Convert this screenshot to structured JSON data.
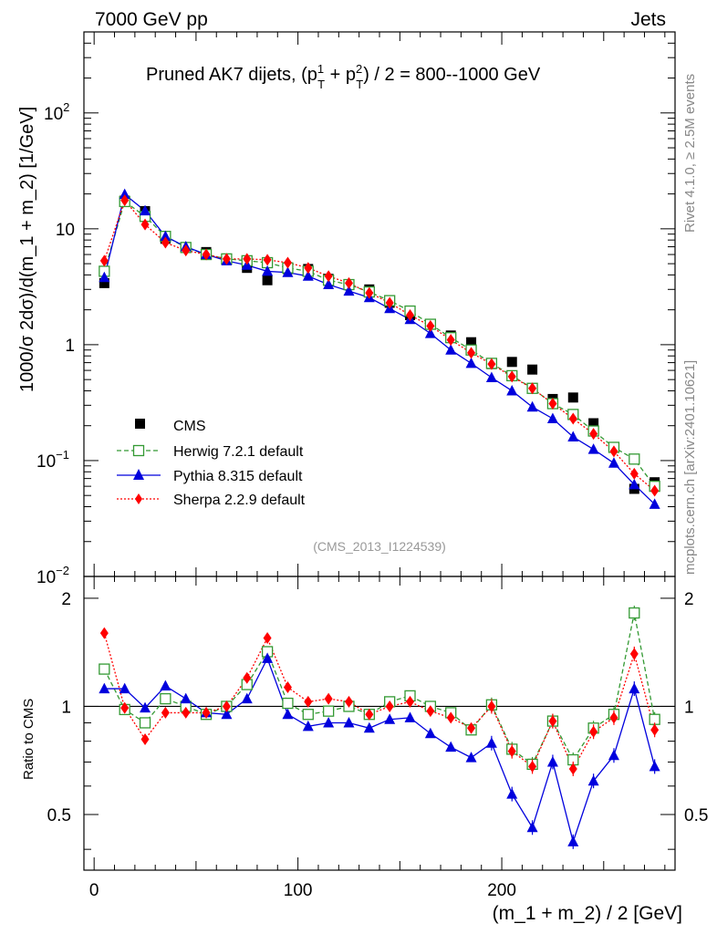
{
  "header": {
    "left": "7000 GeV pp",
    "right": "Jets"
  },
  "side": {
    "rivet": "Rivet 4.1.0, ≥ 2.5M events",
    "mcplots": "mcplots.cern.ch [arXiv:2401.10621]"
  },
  "chart_data": {
    "type": "scatter",
    "title": "Pruned AK7 dijets, (p_T^1 + p_T^2) / 2 = 800--1000 GeV",
    "analysis_id": "(CMS_2013_I1224539)",
    "xlabel": "(m_1 + m_2) / 2 [GeV]",
    "ylabel": "1000/σ  2dσ)/d(m_1 + m_2) [1/GeV]",
    "ratio_ylabel": "Ratio to CMS",
    "xlim": [
      -5,
      285
    ],
    "ylim": [
      0.01,
      500
    ],
    "ratio_ylim": [
      0.35,
      2.3
    ],
    "yscale": "log",
    "x_ticks": [
      "0",
      "100",
      "200"
    ],
    "y_ticks": [
      "10^-2",
      "10^-1",
      "1",
      "10",
      "10^2"
    ],
    "ratio_ticks": [
      "0.5",
      "1",
      "2"
    ],
    "x": [
      5,
      15,
      25,
      35,
      45,
      55,
      65,
      75,
      85,
      95,
      105,
      115,
      125,
      135,
      145,
      155,
      165,
      175,
      185,
      195,
      205,
      215,
      225,
      235,
      245,
      255,
      265,
      275
    ],
    "series": [
      {
        "name": "CMS",
        "style": "square",
        "color": "#000000",
        "values": [
          3.4,
          17.5,
          14.2,
          8.2,
          6.9,
          6.3,
          5.5,
          4.6,
          3.6,
          4.5,
          4.5,
          3.7,
          3.3,
          3.0,
          2.3,
          1.8,
          1.5,
          1.2,
          1.05,
          0.68,
          0.71,
          0.61,
          0.34,
          0.35,
          0.21,
          0.13,
          0.057,
          0.065
        ]
      },
      {
        "name": "Herwig 7.2.1 default",
        "style": "open-square",
        "color": "#339933",
        "values": [
          4.3,
          17.2,
          12.8,
          8.6,
          6.9,
          6.0,
          5.5,
          5.3,
          5.1,
          4.6,
          4.3,
          3.6,
          3.3,
          2.85,
          2.4,
          1.95,
          1.5,
          1.15,
          0.9,
          0.69,
          0.54,
          0.42,
          0.31,
          0.25,
          0.18,
          0.13,
          0.103,
          0.06
        ]
      },
      {
        "name": "Pythia 8.315 default",
        "style": "triangle",
        "color": "#0000dd",
        "values": [
          3.8,
          19.8,
          14.3,
          8.6,
          7.0,
          6.0,
          5.3,
          4.85,
          4.3,
          4.2,
          3.9,
          3.3,
          2.9,
          2.55,
          2.05,
          1.65,
          1.25,
          0.9,
          0.69,
          0.52,
          0.4,
          0.29,
          0.23,
          0.16,
          0.125,
          0.095,
          0.062,
          0.042
        ]
      },
      {
        "name": "Sherpa 2.2.9 default",
        "style": "diamond",
        "color": "#ff0000",
        "values": [
          5.3,
          17.6,
          10.9,
          7.6,
          6.5,
          6.0,
          5.5,
          5.5,
          5.4,
          5.1,
          4.6,
          3.9,
          3.4,
          2.8,
          2.3,
          1.8,
          1.45,
          1.1,
          0.85,
          0.68,
          0.53,
          0.42,
          0.31,
          0.23,
          0.17,
          0.12,
          0.077,
          0.055
        ]
      }
    ],
    "ratios": [
      {
        "name": "Herwig 7.2.1 default",
        "values": [
          1.27,
          0.98,
          0.9,
          1.05,
          1.0,
          0.95,
          1.0,
          1.15,
          1.42,
          1.02,
          0.95,
          0.97,
          1.0,
          0.95,
          1.03,
          1.07,
          1.0,
          0.96,
          0.86,
          1.01,
          0.76,
          0.69,
          0.91,
          0.71,
          0.87,
          0.95,
          1.82,
          0.92
        ]
      },
      {
        "name": "Pythia 8.315 default",
        "values": [
          1.12,
          1.12,
          0.99,
          1.14,
          1.05,
          0.96,
          0.95,
          1.05,
          1.36,
          0.95,
          0.88,
          0.9,
          0.9,
          0.87,
          0.92,
          0.93,
          0.84,
          0.77,
          0.72,
          0.79,
          0.57,
          0.46,
          0.7,
          0.42,
          0.62,
          0.73,
          1.12,
          0.68
        ]
      },
      {
        "name": "Sherpa 2.2.9 default",
        "values": [
          1.6,
          0.99,
          0.81,
          0.96,
          0.96,
          0.96,
          1.0,
          1.2,
          1.55,
          1.13,
          1.03,
          1.05,
          1.03,
          0.95,
          1.0,
          1.03,
          0.97,
          0.93,
          0.87,
          1.0,
          0.75,
          0.68,
          0.91,
          0.67,
          0.85,
          0.93,
          1.4,
          0.86
        ]
      }
    ]
  }
}
